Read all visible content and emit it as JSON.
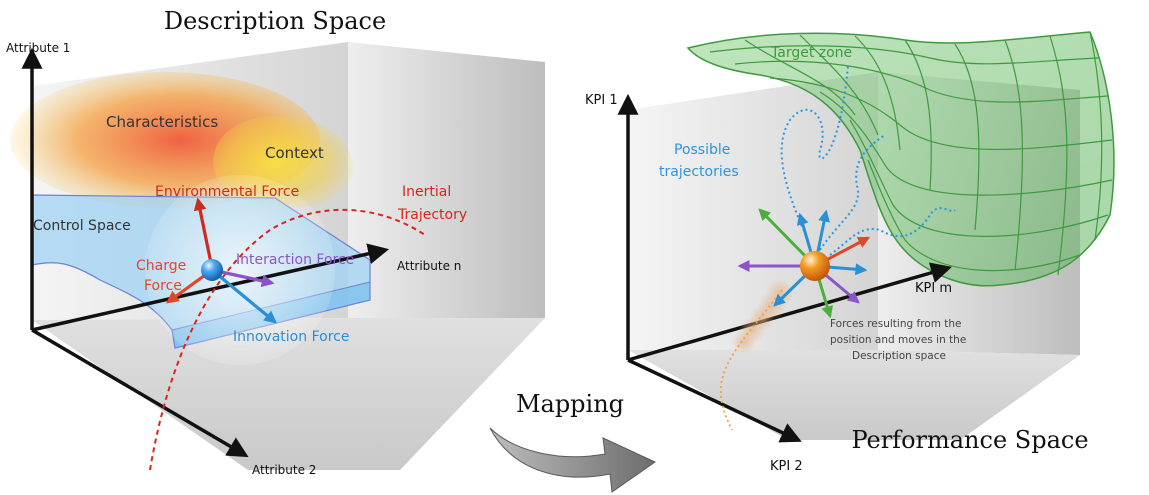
{
  "left_panel": {
    "title": "Description Space",
    "axes": {
      "y": "Attribute 1",
      "x": "Attribute n",
      "z": "Attribute 2"
    },
    "regions": {
      "characteristics": "Characteristics",
      "context": "Context",
      "control_space": "Control Space"
    },
    "forces": {
      "environmental": "Environmental Force",
      "charge_line1": "Charge",
      "charge_line2": "Force",
      "interaction": "Interaction Force",
      "innovation": "Innovation Force"
    },
    "trajectory": {
      "line1": "Inertial",
      "line2": "Trajectory"
    }
  },
  "mapping": {
    "label": "Mapping"
  },
  "right_panel": {
    "title": "Performance Space",
    "axes": {
      "y": "KPI 1",
      "x": "KPI m",
      "z": "KPI 2"
    },
    "target_zone": "Target zone",
    "trajectories": {
      "line1": "Possible",
      "line2": "trajectories"
    },
    "forces_note": {
      "line1": "Forces resulting from the",
      "line2": "position and moves in the",
      "line3": "Description space"
    }
  },
  "colors": {
    "environmental_force": "#cc2b1d",
    "charge_force": "#e0462a",
    "interaction_force": "#8a55c8",
    "innovation_force": "#2a8fd4",
    "inertial_trajectory": "#d9261c",
    "possible_trajectories": "#2a95e0",
    "target_zone": "#3f9a3f",
    "sphere_blue": "#2f8ee6",
    "sphere_orange": "#f08a17"
  }
}
